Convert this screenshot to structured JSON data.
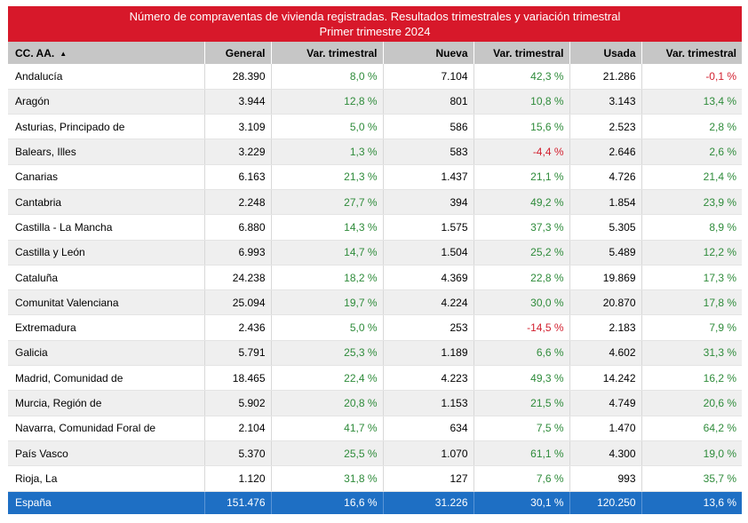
{
  "chart_data": {
    "type": "table",
    "title": "Número de compraventas de vivienda registradas. Resultados trimestrales  y variación trimestral",
    "subtitle": "Primer trimestre 2024",
    "columns": [
      "CC. AA.",
      "General",
      "Var. trimestral",
      "Nueva",
      "Var. trimestral",
      "Usada",
      "Var. trimestral"
    ],
    "rows": [
      {
        "region": "Andalucía",
        "general": "28.390",
        "var_general": "8,0 %",
        "nueva": "7.104",
        "var_nueva": "42,3 %",
        "usada": "21.286",
        "var_usada": "-0,1 %"
      },
      {
        "region": "Aragón",
        "general": "3.944",
        "var_general": "12,8 %",
        "nueva": "801",
        "var_nueva": "10,8 %",
        "usada": "3.143",
        "var_usada": "13,4 %"
      },
      {
        "region": "Asturias, Principado de",
        "general": "3.109",
        "var_general": "5,0 %",
        "nueva": "586",
        "var_nueva": "15,6 %",
        "usada": "2.523",
        "var_usada": "2,8 %"
      },
      {
        "region": "Balears, Illes",
        "general": "3.229",
        "var_general": "1,3 %",
        "nueva": "583",
        "var_nueva": "-4,4 %",
        "usada": "2.646",
        "var_usada": "2,6 %"
      },
      {
        "region": "Canarias",
        "general": "6.163",
        "var_general": "21,3 %",
        "nueva": "1.437",
        "var_nueva": "21,1 %",
        "usada": "4.726",
        "var_usada": "21,4 %"
      },
      {
        "region": "Cantabria",
        "general": "2.248",
        "var_general": "27,7 %",
        "nueva": "394",
        "var_nueva": "49,2 %",
        "usada": "1.854",
        "var_usada": "23,9 %"
      },
      {
        "region": "Castilla - La Mancha",
        "general": "6.880",
        "var_general": "14,3 %",
        "nueva": "1.575",
        "var_nueva": "37,3 %",
        "usada": "5.305",
        "var_usada": "8,9 %"
      },
      {
        "region": "Castilla y León",
        "general": "6.993",
        "var_general": "14,7 %",
        "nueva": "1.504",
        "var_nueva": "25,2 %",
        "usada": "5.489",
        "var_usada": "12,2 %"
      },
      {
        "region": "Cataluña",
        "general": "24.238",
        "var_general": "18,2 %",
        "nueva": "4.369",
        "var_nueva": "22,8 %",
        "usada": "19.869",
        "var_usada": "17,3 %"
      },
      {
        "region": "Comunitat Valenciana",
        "general": "25.094",
        "var_general": "19,7 %",
        "nueva": "4.224",
        "var_nueva": "30,0 %",
        "usada": "20.870",
        "var_usada": "17,8 %"
      },
      {
        "region": "Extremadura",
        "general": "2.436",
        "var_general": "5,0 %",
        "nueva": "253",
        "var_nueva": "-14,5 %",
        "usada": "2.183",
        "var_usada": "7,9 %"
      },
      {
        "region": "Galicia",
        "general": "5.791",
        "var_general": "25,3 %",
        "nueva": "1.189",
        "var_nueva": "6,6 %",
        "usada": "4.602",
        "var_usada": "31,3 %"
      },
      {
        "region": "Madrid, Comunidad de",
        "general": "18.465",
        "var_general": "22,4 %",
        "nueva": "4.223",
        "var_nueva": "49,3 %",
        "usada": "14.242",
        "var_usada": "16,2 %"
      },
      {
        "region": "Murcia, Región de",
        "general": "5.902",
        "var_general": "20,8 %",
        "nueva": "1.153",
        "var_nueva": "21,5 %",
        "usada": "4.749",
        "var_usada": "20,6 %"
      },
      {
        "region": "Navarra, Comunidad Foral de",
        "general": "2.104",
        "var_general": "41,7 %",
        "nueva": "634",
        "var_nueva": "7,5 %",
        "usada": "1.470",
        "var_usada": "64,2 %"
      },
      {
        "region": "País Vasco",
        "general": "5.370",
        "var_general": "25,5 %",
        "nueva": "1.070",
        "var_nueva": "61,1 %",
        "usada": "4.300",
        "var_usada": "19,0 %"
      },
      {
        "region": "Rioja, La",
        "general": "1.120",
        "var_general": "31,8 %",
        "nueva": "127",
        "var_nueva": "7,6 %",
        "usada": "993",
        "var_usada": "35,7 %"
      }
    ],
    "total": {
      "region": "España",
      "general": "151.476",
      "var_general": "16,6 %",
      "nueva": "31.226",
      "var_nueva": "30,1 %",
      "usada": "120.250",
      "var_usada": "13,6 %"
    },
    "sort_icon": "sort-ascending-icon"
  },
  "colors": {
    "title_bg": "#d7182a",
    "header_bg": "#c6c6c6",
    "total_bg": "#1e6fc4",
    "positive": "#2e8b3a",
    "negative": "#d21f2e"
  }
}
